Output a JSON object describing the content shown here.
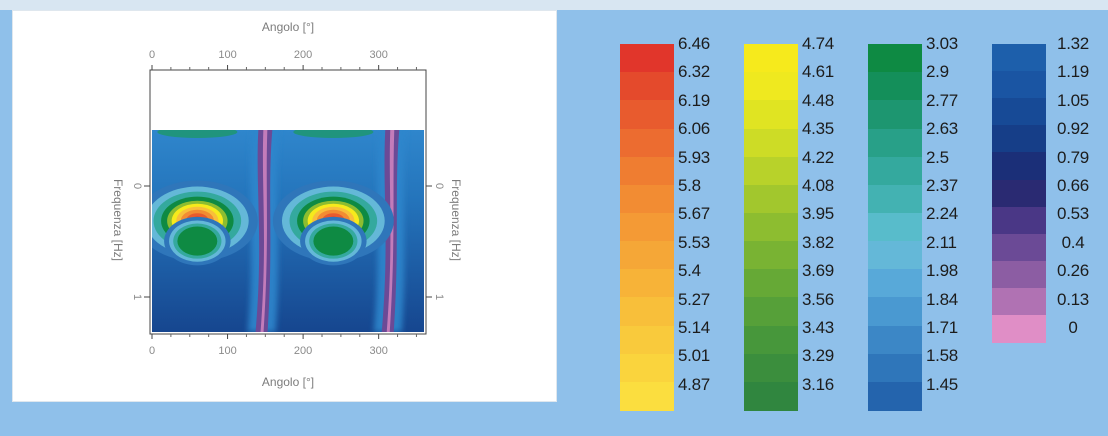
{
  "chart_data": {
    "type": "heatmap",
    "title": "",
    "xlabel_top": "Angolo [°]",
    "xlabel_bottom": "Angolo [°]",
    "ylabel_left": "Frequenza [Hz]",
    "ylabel_right": "Frequenza [Hz]",
    "x_ticks_top": [
      "0",
      "100",
      "200",
      "300"
    ],
    "x_ticks_bottom": [
      "0",
      "100",
      "200",
      "300"
    ],
    "y_ticks_left": [
      "0",
      "1"
    ],
    "y_ticks_right": [
      "0",
      "1"
    ],
    "xlim": [
      0,
      360
    ],
    "blobs": [
      {
        "x": 60,
        "y": 0.45,
        "rx": 40,
        "ry": 0.1,
        "level": 6.19
      },
      {
        "x": 240,
        "y": 0.45,
        "rx": 40,
        "ry": 0.1,
        "level": 6.19
      },
      {
        "x": 60,
        "y": 0.55,
        "rx": 22,
        "ry": 0.06,
        "level": 3.03
      },
      {
        "x": 240,
        "y": 0.55,
        "rx": 22,
        "ry": 0.06,
        "level": 3.03
      }
    ],
    "ridges": [
      {
        "x_top": 150,
        "x_bottom": 145,
        "level": 0.4
      },
      {
        "x_top": 318,
        "x_bottom": 312,
        "level": 0.4
      }
    ],
    "colorbar_levels": [
      "6.46",
      "6.32",
      "6.19",
      "6.06",
      "5.93",
      "5.8",
      "5.67",
      "5.53",
      "5.4",
      "5.27",
      "5.14",
      "5.01",
      "4.87",
      "4.74",
      "4.61",
      "4.48",
      "4.35",
      "4.22",
      "4.08",
      "3.95",
      "3.82",
      "3.69",
      "3.56",
      "3.43",
      "3.29",
      "3.16",
      "3.03",
      "2.9",
      "2.77",
      "2.63",
      "2.5",
      "2.37",
      "2.24",
      "2.11",
      "1.98",
      "1.84",
      "1.71",
      "1.58",
      "1.45",
      "1.32",
      "1.19",
      "1.05",
      "0.92",
      "0.79",
      "0.66",
      "0.53",
      "0.4",
      "0.26",
      "0.13",
      "0"
    ]
  },
  "legend": {
    "columns": [
      {
        "labels": [
          "6.46",
          "6.32",
          "6.19",
          "6.06",
          "5.93",
          "5.8",
          "5.67",
          "5.53",
          "5.4",
          "5.27",
          "5.14",
          "5.01",
          "4.87"
        ],
        "colors": [
          "#e1362b",
          "#e44a2c",
          "#e85b2e",
          "#ec6c30",
          "#ef7d31",
          "#f28c33",
          "#f49a35",
          "#f5a737",
          "#f7b338",
          "#f8bf3a",
          "#f9ca3c",
          "#fad43d",
          "#fbde3f"
        ]
      },
      {
        "labels": [
          "4.74",
          "4.61",
          "4.48",
          "4.35",
          "4.22",
          "4.08",
          "3.95",
          "3.82",
          "3.69",
          "3.56",
          "3.43",
          "3.29",
          "3.16"
        ],
        "colors": [
          "#f6ea1c",
          "#efe91f",
          "#e0e422",
          "#cddc26",
          "#b8d22a",
          "#a2c72d",
          "#8dbd30",
          "#79b333",
          "#66a936",
          "#56a039",
          "#47973b",
          "#3b8e3d",
          "#30863f"
        ]
      },
      {
        "labels": [
          "3.03",
          "2.9",
          "2.77",
          "2.63",
          "2.5",
          "2.37",
          "2.24",
          "2.11",
          "1.98",
          "1.84",
          "1.71",
          "1.58",
          "1.45"
        ],
        "colors": [
          "#0e8a43",
          "#148f5a",
          "#1d9670",
          "#28a088",
          "#34a99e",
          "#43b2b2",
          "#58bccb",
          "#64b8d8",
          "#58a9d9",
          "#4a99d1",
          "#3c87c6",
          "#2f76ba",
          "#2464ad"
        ]
      },
      {
        "labels": [
          "1.32",
          "1.19",
          "1.05",
          "0.92",
          "0.79",
          "0.66",
          "0.53",
          "0.4",
          "0.26",
          "0.13",
          "0"
        ],
        "colors": [
          "#1d5fab",
          "#1a55a3",
          "#174a96",
          "#163e88",
          "#1b2f78",
          "#2a2a72",
          "#4a3786",
          "#6b4a96",
          "#8c5da3",
          "#b072b3",
          "#e08ec6"
        ]
      }
    ]
  }
}
